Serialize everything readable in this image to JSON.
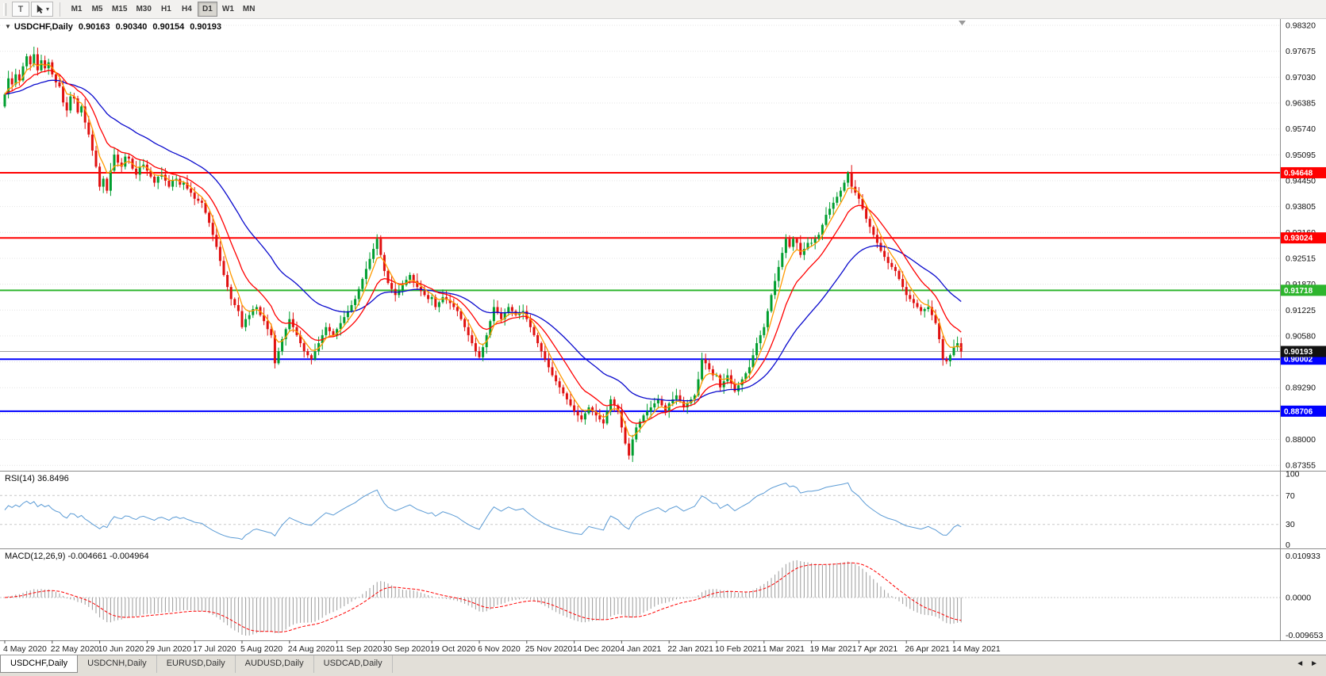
{
  "toolbar": {
    "text_tool_label": "T",
    "timeframes": [
      "M1",
      "M5",
      "M15",
      "M30",
      "H1",
      "H4",
      "D1",
      "W1",
      "MN"
    ],
    "active_timeframe": "D1"
  },
  "chart_info": {
    "symbol_period": "USDCHF,Daily",
    "open": "0.90163",
    "high": "0.90340",
    "low": "0.90154",
    "close": "0.90193"
  },
  "panels": {
    "rsi_title": "RSI(14) 36.8496",
    "macd_title": "MACD(12,26,9) -0.004661 -0.004964"
  },
  "tabs": {
    "items": [
      "USDCHF,Daily",
      "USDCNH,Daily",
      "EURUSD,Daily",
      "AUDUSD,Daily",
      "USDCAD,Daily"
    ],
    "active_index": 0,
    "scroll_left_icon": "◄",
    "scroll_right_icon": "►"
  },
  "chart_data": {
    "type": "candlestick",
    "symbol": "USDCHF",
    "period": "Daily",
    "ylim": [
      0.873,
      0.984
    ],
    "y_tick_labels": [
      "0.98320",
      "0.97675",
      "0.97030",
      "0.96385",
      "0.95740",
      "0.95095",
      "0.94450",
      "0.93805",
      "0.93160",
      "0.92515",
      "0.91870",
      "0.91225",
      "0.90580",
      "0.89935",
      "0.89290",
      "0.88645",
      "0.88000",
      "0.87355"
    ],
    "x_tick_labels": [
      "4 May 2020",
      "22 May 2020",
      "10 Jun 2020",
      "29 Jun 2020",
      "17 Jul 2020",
      "5 Aug 2020",
      "24 Aug 2020",
      "11 Sep 2020",
      "30 Sep 2020",
      "19 Oct 2020",
      "6 Nov 2020",
      "25 Nov 2020",
      "14 Dec 2020",
      "4 Jan 2021",
      "22 Jan 2021",
      "10 Feb 2021",
      "1 Mar 2021",
      "19 Mar 2021",
      "7 Apr 2021",
      "26 Apr 2021",
      "14 May 2021"
    ],
    "bars_per_tick": 13,
    "first_open": 0.963,
    "closes": [
      0.966,
      0.97,
      0.9685,
      0.971,
      0.9695,
      0.973,
      0.9755,
      0.9735,
      0.976,
      0.972,
      0.9745,
      0.9725,
      0.974,
      0.971,
      0.969,
      0.968,
      0.964,
      0.962,
      0.9655,
      0.965,
      0.9615,
      0.963,
      0.959,
      0.956,
      0.952,
      0.948,
      0.943,
      0.945,
      0.942,
      0.947,
      0.951,
      0.949,
      0.948,
      0.9505,
      0.95,
      0.9475,
      0.946,
      0.948,
      0.9485,
      0.947,
      0.9455,
      0.944,
      0.9455,
      0.946,
      0.9445,
      0.943,
      0.9445,
      0.945,
      0.9435,
      0.944,
      0.9425,
      0.9415,
      0.94,
      0.9395,
      0.939,
      0.9365,
      0.934,
      0.931,
      0.928,
      0.9245,
      0.921,
      0.918,
      0.915,
      0.9135,
      0.912,
      0.908,
      0.91,
      0.911,
      0.9125,
      0.913,
      0.911,
      0.9095,
      0.9075,
      0.906,
      0.899,
      0.902,
      0.905,
      0.9075,
      0.91,
      0.908,
      0.906,
      0.904,
      0.902,
      0.901,
      0.9,
      0.902,
      0.904,
      0.906,
      0.908,
      0.907,
      0.906,
      0.9075,
      0.909,
      0.9105,
      0.912,
      0.9135,
      0.915,
      0.9175,
      0.92,
      0.9225,
      0.925,
      0.9275,
      0.93,
      0.926,
      0.922,
      0.919,
      0.9175,
      0.916,
      0.9172,
      0.9185,
      0.9198,
      0.921,
      0.9195,
      0.918,
      0.917,
      0.916,
      0.915,
      0.9155,
      0.913,
      0.9142,
      0.9155,
      0.9148,
      0.914,
      0.913,
      0.912,
      0.91,
      0.908,
      0.906,
      0.904,
      0.902,
      0.9005,
      0.903,
      0.906,
      0.9095,
      0.913,
      0.9115,
      0.91,
      0.9115,
      0.913,
      0.912,
      0.911,
      0.9115,
      0.912,
      0.91,
      0.908,
      0.906,
      0.904,
      0.902,
      0.9,
      0.898,
      0.896,
      0.8945,
      0.893,
      0.8915,
      0.89,
      0.8885,
      0.887,
      0.886,
      0.885,
      0.8865,
      0.888,
      0.887,
      0.886,
      0.885,
      0.884,
      0.887,
      0.89,
      0.8885,
      0.887,
      0.883,
      0.879,
      0.876,
      0.88,
      0.883,
      0.8845,
      0.886,
      0.887,
      0.888,
      0.889,
      0.89,
      0.8885,
      0.887,
      0.889,
      0.89,
      0.891,
      0.8895,
      0.888,
      0.889,
      0.89,
      0.891,
      0.895,
      0.9,
      0.899,
      0.8975,
      0.896,
      0.896,
      0.893,
      0.8945,
      0.896,
      0.894,
      0.892,
      0.8935,
      0.895,
      0.8965,
      0.898,
      0.901,
      0.904,
      0.906,
      0.908,
      0.912,
      0.916,
      0.9195,
      0.923,
      0.9265,
      0.93,
      0.928,
      0.93,
      0.929,
      0.926,
      0.9275,
      0.929,
      0.929,
      0.93,
      0.931,
      0.9335,
      0.936,
      0.9375,
      0.939,
      0.9405,
      0.942,
      0.944,
      0.9465,
      0.943,
      0.9415,
      0.94,
      0.9375,
      0.935,
      0.933,
      0.931,
      0.929,
      0.927,
      0.9255,
      0.924,
      0.923,
      0.922,
      0.92,
      0.918,
      0.916,
      0.915,
      0.914,
      0.913,
      0.912,
      0.9125,
      0.913,
      0.911,
      0.909,
      0.905,
      0.9,
      0.8995,
      0.901,
      0.903,
      0.904,
      0.90193
    ],
    "bull_color": "#009e2f",
    "bear_color": "#e01010",
    "moving_averages": [
      {
        "period": 5,
        "color": "#ff9a00"
      },
      {
        "period": 13,
        "color": "#ff0000"
      },
      {
        "period": 34,
        "color": "#0a0acd"
      }
    ],
    "horizontal_lines": [
      {
        "value": 0.94648,
        "label": "0.94648",
        "color": "#ff0000"
      },
      {
        "value": 0.93024,
        "label": "0.93024",
        "color": "#ff0000"
      },
      {
        "value": 0.91718,
        "label": "0.91718",
        "color": "#2db52d"
      },
      {
        "value": 0.90002,
        "label": "0.90002",
        "color": "#0000ff"
      },
      {
        "value": 0.88706,
        "label": "0.88706",
        "color": "#0000ff"
      }
    ],
    "current_price": {
      "value": 0.90193,
      "label": "0.90193",
      "color": "#111111"
    },
    "rsi": {
      "period": 14,
      "value": 36.8496,
      "color": "#5b9bd5",
      "levels": [
        70,
        30
      ],
      "scale_values": [
        100,
        70,
        30,
        0
      ],
      "scale_labels": [
        "100",
        "70",
        "30",
        "0"
      ]
    },
    "macd": {
      "fast": 12,
      "slow": 26,
      "signal": 9,
      "macd_value": -0.004661,
      "signal_value": -0.004964,
      "hist_color": "#9b9b9b",
      "signal_color": "#ff0000",
      "scale_labels": [
        "0.010933",
        "0.0000",
        "-0.009653"
      ]
    }
  }
}
